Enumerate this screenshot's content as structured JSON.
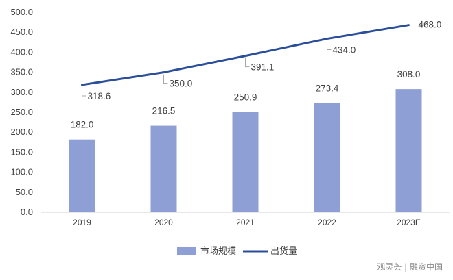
{
  "chart_data": {
    "type": "bar",
    "title": "",
    "xlabel": "",
    "ylabel": "",
    "categories": [
      "2019",
      "2020",
      "2021",
      "2022",
      "2023E"
    ],
    "ylim": [
      0,
      500
    ],
    "yticks": [
      "0.0",
      "50.0",
      "100.0",
      "150.0",
      "200.0",
      "250.0",
      "300.0",
      "350.0",
      "400.0",
      "450.0",
      "500.0"
    ],
    "grid": false,
    "legend_position": "bottom",
    "series": [
      {
        "name": "市场规模",
        "type": "bar",
        "color": "#8E9FD6",
        "values": [
          182.0,
          216.5,
          250.9,
          273.4,
          308.0
        ],
        "labels": [
          "182.0",
          "216.5",
          "250.9",
          "273.4",
          "308.0"
        ]
      },
      {
        "name": "出货量",
        "type": "line",
        "color": "#2B4E9A",
        "values": [
          318.6,
          350.0,
          391.1,
          434.0,
          468.0
        ],
        "labels": [
          "318.6",
          "350.0",
          "391.1",
          "434.0",
          "468.0"
        ]
      }
    ]
  },
  "watermark": "观灵荟 | 融资中国"
}
